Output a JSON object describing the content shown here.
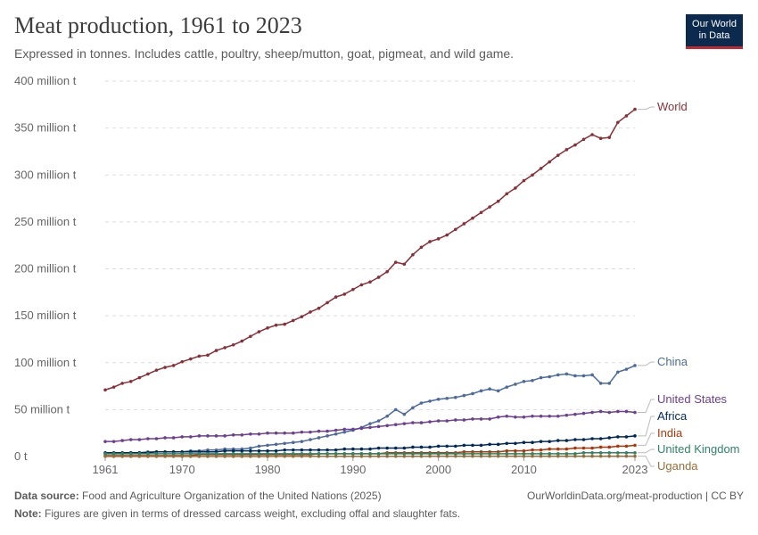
{
  "header": {
    "title": "Meat production, 1961 to 2023",
    "subtitle": "Expressed in tonnes. Includes cattle, poultry, sheep/mutton, goat, pigmeat, and wild game.",
    "logo_line1": "Our World",
    "logo_line2": "in Data"
  },
  "footer": {
    "source_label": "Data source:",
    "source_text": "Food and Agriculture Organization of the United Nations (2025)",
    "url": "OurWorldinData.org/meat-production | CC BY",
    "note_label": "Note:",
    "note_text": "Figures are given in terms of dressed carcass weight, excluding offal and slaughter fats."
  },
  "chart_data": {
    "type": "line",
    "title": "Meat production, 1961 to 2023",
    "xlim": [
      1961,
      2023
    ],
    "ylim": [
      0,
      400
    ],
    "grid": true,
    "y_ticks": [
      {
        "value": 0,
        "label": "0 t"
      },
      {
        "value": 50,
        "label": "50 million t"
      },
      {
        "value": 100,
        "label": "100 million t"
      },
      {
        "value": 150,
        "label": "150 million t"
      },
      {
        "value": 200,
        "label": "200 million t"
      },
      {
        "value": 250,
        "label": "250 million t"
      },
      {
        "value": 300,
        "label": "300 million t"
      },
      {
        "value": 350,
        "label": "350 million t"
      },
      {
        "value": 400,
        "label": "400 million t"
      }
    ],
    "x_ticks": [
      {
        "value": 1961,
        "label": "1961"
      },
      {
        "value": 1970,
        "label": "1970"
      },
      {
        "value": 1980,
        "label": "1980"
      },
      {
        "value": 1990,
        "label": "1990"
      },
      {
        "value": 2000,
        "label": "2000"
      },
      {
        "value": 2010,
        "label": "2010"
      },
      {
        "value": 2023,
        "label": "2023"
      }
    ],
    "x": [
      1961,
      1962,
      1963,
      1964,
      1965,
      1966,
      1967,
      1968,
      1969,
      1970,
      1971,
      1972,
      1973,
      1974,
      1975,
      1976,
      1977,
      1978,
      1979,
      1980,
      1981,
      1982,
      1983,
      1984,
      1985,
      1986,
      1987,
      1988,
      1989,
      1990,
      1991,
      1992,
      1993,
      1994,
      1995,
      1996,
      1997,
      1998,
      1999,
      2000,
      2001,
      2002,
      2003,
      2004,
      2005,
      2006,
      2007,
      2008,
      2009,
      2010,
      2011,
      2012,
      2013,
      2014,
      2015,
      2016,
      2017,
      2018,
      2019,
      2020,
      2021,
      2022,
      2023
    ],
    "series": [
      {
        "name": "World",
        "color": "#883039",
        "values": [
          71,
          74,
          78,
          80,
          84,
          88,
          92,
          95,
          97,
          101,
          104,
          107,
          108,
          113,
          116,
          119,
          123,
          128,
          133,
          137,
          140,
          141,
          145,
          149,
          154,
          158,
          164,
          170,
          173,
          178,
          183,
          186,
          191,
          197,
          207,
          205,
          215,
          223,
          229,
          232,
          236,
          242,
          248,
          254,
          260,
          266,
          272,
          280,
          286,
          294,
          300,
          307,
          314,
          321,
          327,
          332,
          338,
          343,
          339,
          340,
          356,
          363,
          370
        ]
      },
      {
        "name": "China",
        "color": "#4c6a9c",
        "values": [
          3,
          3,
          3,
          4,
          4,
          5,
          5,
          5,
          5,
          5,
          6,
          6,
          7,
          7,
          8,
          8,
          8,
          9,
          11,
          12,
          13,
          14,
          15,
          16,
          18,
          20,
          22,
          24,
          26,
          28,
          31,
          35,
          38,
          43,
          50,
          45,
          52,
          57,
          59,
          61,
          62,
          63,
          65,
          67,
          70,
          72,
          70,
          74,
          77,
          80,
          81,
          84,
          85,
          87,
          88,
          86,
          86,
          87,
          78,
          78,
          90,
          93,
          97
        ]
      },
      {
        "name": "United States",
        "color": "#6d3e91",
        "values": [
          16,
          16,
          17,
          18,
          18,
          19,
          19,
          20,
          20,
          21,
          21,
          22,
          22,
          22,
          22,
          23,
          23,
          24,
          24,
          25,
          25,
          25,
          25,
          26,
          26,
          27,
          27,
          28,
          29,
          29,
          30,
          31,
          32,
          33,
          34,
          35,
          36,
          36,
          37,
          38,
          38,
          39,
          39,
          40,
          40,
          40,
          42,
          43,
          42,
          42,
          43,
          43,
          43,
          43,
          44,
          45,
          46,
          47,
          48,
          47,
          48,
          48,
          47
        ]
      },
      {
        "name": "Africa",
        "color": "#00295b",
        "values": [
          4,
          4,
          4,
          4,
          4,
          4,
          5,
          5,
          5,
          5,
          5,
          5,
          5,
          5,
          6,
          6,
          6,
          6,
          6,
          6,
          6,
          7,
          7,
          7,
          7,
          7,
          7,
          7,
          8,
          8,
          8,
          8,
          9,
          9,
          9,
          9,
          10,
          10,
          10,
          11,
          11,
          11,
          12,
          12,
          12,
          13,
          13,
          14,
          14,
          15,
          15,
          16,
          16,
          17,
          17,
          18,
          18,
          19,
          19,
          20,
          21,
          21,
          22
        ]
      },
      {
        "name": "India",
        "color": "#b13507",
        "values": [
          1,
          1,
          1,
          1,
          1,
          1,
          1,
          1,
          1,
          1,
          1,
          2,
          2,
          2,
          2,
          2,
          2,
          2,
          2,
          2,
          2,
          2,
          2,
          2,
          2,
          3,
          3,
          3,
          3,
          3,
          3,
          3,
          3,
          4,
          4,
          4,
          4,
          4,
          4,
          4,
          4,
          4,
          5,
          5,
          5,
          5,
          5,
          6,
          6,
          6,
          7,
          7,
          8,
          8,
          8,
          9,
          9,
          9,
          10,
          10,
          11,
          11,
          12
        ]
      },
      {
        "name": "United Kingdom",
        "color": "#2f8465",
        "values": [
          3,
          3,
          3,
          3,
          3,
          3,
          3,
          3,
          3,
          3,
          3,
          3,
          3,
          3,
          3,
          3,
          3,
          3,
          3,
          3,
          3,
          3,
          3,
          3,
          3,
          3,
          3,
          3,
          3,
          3,
          3,
          3,
          3,
          3,
          3,
          3,
          3,
          3,
          3,
          3,
          3,
          3,
          3,
          3,
          3,
          3,
          3,
          3,
          3,
          3,
          3,
          3,
          3,
          3,
          3,
          3,
          4,
          4,
          4,
          4,
          4,
          4,
          4
        ]
      },
      {
        "name": "Uganda",
        "color": "#996d39",
        "values": [
          0.1,
          0.1,
          0.1,
          0.1,
          0.1,
          0.1,
          0.1,
          0.1,
          0.1,
          0.1,
          0.1,
          0.1,
          0.1,
          0.1,
          0.1,
          0.1,
          0.1,
          0.1,
          0.1,
          0.1,
          0.2,
          0.2,
          0.2,
          0.2,
          0.2,
          0.2,
          0.2,
          0.2,
          0.2,
          0.2,
          0.2,
          0.2,
          0.2,
          0.2,
          0.2,
          0.2,
          0.2,
          0.2,
          0.3,
          0.3,
          0.3,
          0.3,
          0.3,
          0.3,
          0.3,
          0.3,
          0.3,
          0.3,
          0.3,
          0.3,
          0.3,
          0.4,
          0.4,
          0.4,
          0.4,
          0.4,
          0.4,
          0.4,
          0.4,
          0.4,
          0.4,
          0.4,
          0.4
        ]
      }
    ]
  }
}
